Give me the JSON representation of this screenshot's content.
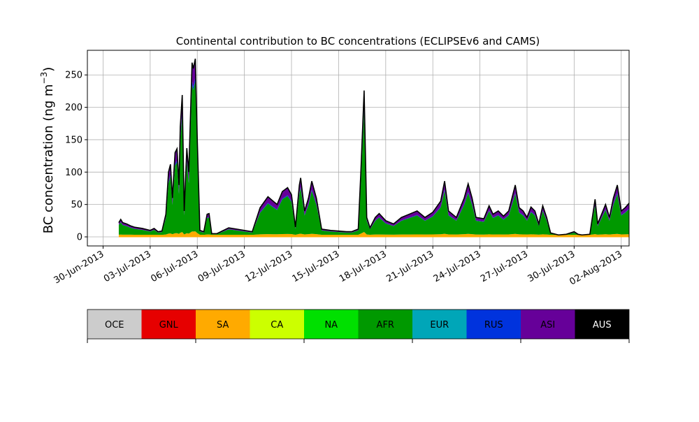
{
  "chart_data": {
    "type": "area",
    "stacked": true,
    "title": "Continental contribution to BC concentrations (ECLIPSEv6 and CAMS)",
    "ylabel_main": "BC concentration (ng m",
    "ylabel_sup": "−3",
    "ylabel_tail": ")",
    "ylim": [
      -14,
      288
    ],
    "xlim": [
      "2013-06-29T00:00",
      "2013-08-02T12:00"
    ],
    "grid": true,
    "y_ticks": [
      0,
      50,
      100,
      150,
      200,
      250
    ],
    "x_ticks": [
      {
        "date": "2013-06-30",
        "label": "30-Jun-2013"
      },
      {
        "date": "2013-07-03",
        "label": "03-Jul-2013"
      },
      {
        "date": "2013-07-06",
        "label": "06-Jul-2013"
      },
      {
        "date": "2013-07-09",
        "label": "09-Jul-2013"
      },
      {
        "date": "2013-07-12",
        "label": "12-Jul-2013"
      },
      {
        "date": "2013-07-15",
        "label": "15-Jul-2013"
      },
      {
        "date": "2013-07-18",
        "label": "18-Jul-2013"
      },
      {
        "date": "2013-07-21",
        "label": "21-Jul-2013"
      },
      {
        "date": "2013-07-24",
        "label": "24-Jul-2013"
      },
      {
        "date": "2013-07-27",
        "label": "27-Jul-2013"
      },
      {
        "date": "2013-07-30",
        "label": "30-Jul-2013"
      },
      {
        "date": "2013-08-02",
        "label": "02-Aug-2013"
      }
    ],
    "total_profile": [
      [
        "2013-07-01T00:00",
        22
      ],
      [
        "2013-07-01T03:00",
        27
      ],
      [
        "2013-07-01T06:00",
        22
      ],
      [
        "2013-07-01T12:00",
        20
      ],
      [
        "2013-07-01T18:00",
        17
      ],
      [
        "2013-07-02T00:00",
        15
      ],
      [
        "2013-07-02T12:00",
        13
      ],
      [
        "2013-07-03T00:00",
        10
      ],
      [
        "2013-07-03T06:00",
        13
      ],
      [
        "2013-07-03T12:00",
        8
      ],
      [
        "2013-07-03T18:00",
        9
      ],
      [
        "2013-07-04T00:00",
        35
      ],
      [
        "2013-07-04T04:00",
        100
      ],
      [
        "2013-07-04T07:00",
        112
      ],
      [
        "2013-07-04T10:00",
        60
      ],
      [
        "2013-07-04T14:00",
        130
      ],
      [
        "2013-07-04T17:00",
        136
      ],
      [
        "2013-07-04T20:00",
        80
      ],
      [
        "2013-07-04T22:00",
        170
      ],
      [
        "2013-07-05T01:00",
        219
      ],
      [
        "2013-07-05T04:00",
        40
      ],
      [
        "2013-07-05T08:00",
        137
      ],
      [
        "2013-07-05T11:00",
        100
      ],
      [
        "2013-07-05T16:00",
        269
      ],
      [
        "2013-07-05T18:00",
        260
      ],
      [
        "2013-07-05T21:00",
        275
      ],
      [
        "2013-07-06T00:00",
        150
      ],
      [
        "2013-07-06T04:00",
        10
      ],
      [
        "2013-07-06T10:00",
        8
      ],
      [
        "2013-07-06T15:00",
        35
      ],
      [
        "2013-07-06T18:00",
        36
      ],
      [
        "2013-07-06T22:00",
        5
      ],
      [
        "2013-07-07T06:00",
        5
      ],
      [
        "2013-07-07T12:00",
        8
      ],
      [
        "2013-07-08T00:00",
        14
      ],
      [
        "2013-07-08T12:00",
        12
      ],
      [
        "2013-07-09T00:00",
        10
      ],
      [
        "2013-07-09T12:00",
        8
      ],
      [
        "2013-07-10T00:00",
        45
      ],
      [
        "2013-07-10T12:00",
        62
      ],
      [
        "2013-07-10T20:00",
        55
      ],
      [
        "2013-07-11T02:00",
        50
      ],
      [
        "2013-07-11T10:00",
        70
      ],
      [
        "2013-07-11T18:00",
        76
      ],
      [
        "2013-07-12T00:00",
        65
      ],
      [
        "2013-07-12T06:00",
        15
      ],
      [
        "2013-07-12T12:00",
        80
      ],
      [
        "2013-07-12T14:00",
        91
      ],
      [
        "2013-07-12T20:00",
        40
      ],
      [
        "2013-07-13T02:00",
        60
      ],
      [
        "2013-07-13T07:00",
        86
      ],
      [
        "2013-07-13T14:00",
        60
      ],
      [
        "2013-07-13T22:00",
        12
      ],
      [
        "2013-07-14T12:00",
        10
      ],
      [
        "2013-07-15T00:00",
        9
      ],
      [
        "2013-07-15T12:00",
        8
      ],
      [
        "2013-07-15T20:00",
        8
      ],
      [
        "2013-07-16T06:00",
        12
      ],
      [
        "2013-07-16T10:00",
        100
      ],
      [
        "2013-07-16T15:00",
        226
      ],
      [
        "2013-07-16T19:00",
        30
      ],
      [
        "2013-07-17T00:00",
        14
      ],
      [
        "2013-07-17T08:00",
        30
      ],
      [
        "2013-07-17T14:00",
        36
      ],
      [
        "2013-07-18T00:00",
        25
      ],
      [
        "2013-07-18T12:00",
        20
      ],
      [
        "2013-07-19T00:00",
        30
      ],
      [
        "2013-07-19T12:00",
        35
      ],
      [
        "2013-07-20T00:00",
        40
      ],
      [
        "2013-07-20T12:00",
        30
      ],
      [
        "2013-07-21T00:00",
        38
      ],
      [
        "2013-07-21T12:00",
        55
      ],
      [
        "2013-07-21T18:00",
        86
      ],
      [
        "2013-07-22T00:00",
        40
      ],
      [
        "2013-07-22T12:00",
        30
      ],
      [
        "2013-07-23T00:00",
        60
      ],
      [
        "2013-07-23T06:00",
        82
      ],
      [
        "2013-07-23T12:00",
        60
      ],
      [
        "2013-07-23T18:00",
        30
      ],
      [
        "2013-07-24T06:00",
        28
      ],
      [
        "2013-07-24T14:00",
        48
      ],
      [
        "2013-07-24T20:00",
        35
      ],
      [
        "2013-07-25T04:00",
        40
      ],
      [
        "2013-07-25T12:00",
        32
      ],
      [
        "2013-07-25T20:00",
        40
      ],
      [
        "2013-07-26T06:00",
        80
      ],
      [
        "2013-07-26T12:00",
        45
      ],
      [
        "2013-07-26T18:00",
        40
      ],
      [
        "2013-07-27T00:00",
        30
      ],
      [
        "2013-07-27T06:00",
        46
      ],
      [
        "2013-07-27T12:00",
        40
      ],
      [
        "2013-07-27T18:00",
        20
      ],
      [
        "2013-07-28T00:00",
        48
      ],
      [
        "2013-07-28T06:00",
        30
      ],
      [
        "2013-07-28T12:00",
        6
      ],
      [
        "2013-07-29T00:00",
        3
      ],
      [
        "2013-07-29T12:00",
        4
      ],
      [
        "2013-07-30T00:00",
        8
      ],
      [
        "2013-07-30T06:00",
        4
      ],
      [
        "2013-07-30T12:00",
        3
      ],
      [
        "2013-07-31T00:00",
        4
      ],
      [
        "2013-07-31T08:00",
        58
      ],
      [
        "2013-07-31T12:00",
        20
      ],
      [
        "2013-08-01T00:00",
        50
      ],
      [
        "2013-08-01T06:00",
        30
      ],
      [
        "2013-08-01T12:00",
        60
      ],
      [
        "2013-08-01T18:00",
        80
      ],
      [
        "2013-08-02T00:00",
        40
      ],
      [
        "2013-08-02T06:00",
        45
      ],
      [
        "2013-08-02T12:00",
        52
      ]
    ],
    "legend": {
      "placement": "bottom",
      "items": [
        {
          "label": "OCE",
          "color": "#cccccc"
        },
        {
          "label": "GNL",
          "color": "#e60000"
        },
        {
          "label": "SA",
          "color": "#ffaa00"
        },
        {
          "label": "CA",
          "color": "#ccff00"
        },
        {
          "label": "NA",
          "color": "#00e000"
        },
        {
          "label": "AFR",
          "color": "#009900"
        },
        {
          "label": "EUR",
          "color": "#00a6b8"
        },
        {
          "label": "RUS",
          "color": "#0033dd"
        },
        {
          "label": "ASI",
          "color": "#660099"
        },
        {
          "label": "AUS",
          "color": "#000000"
        }
      ]
    }
  }
}
